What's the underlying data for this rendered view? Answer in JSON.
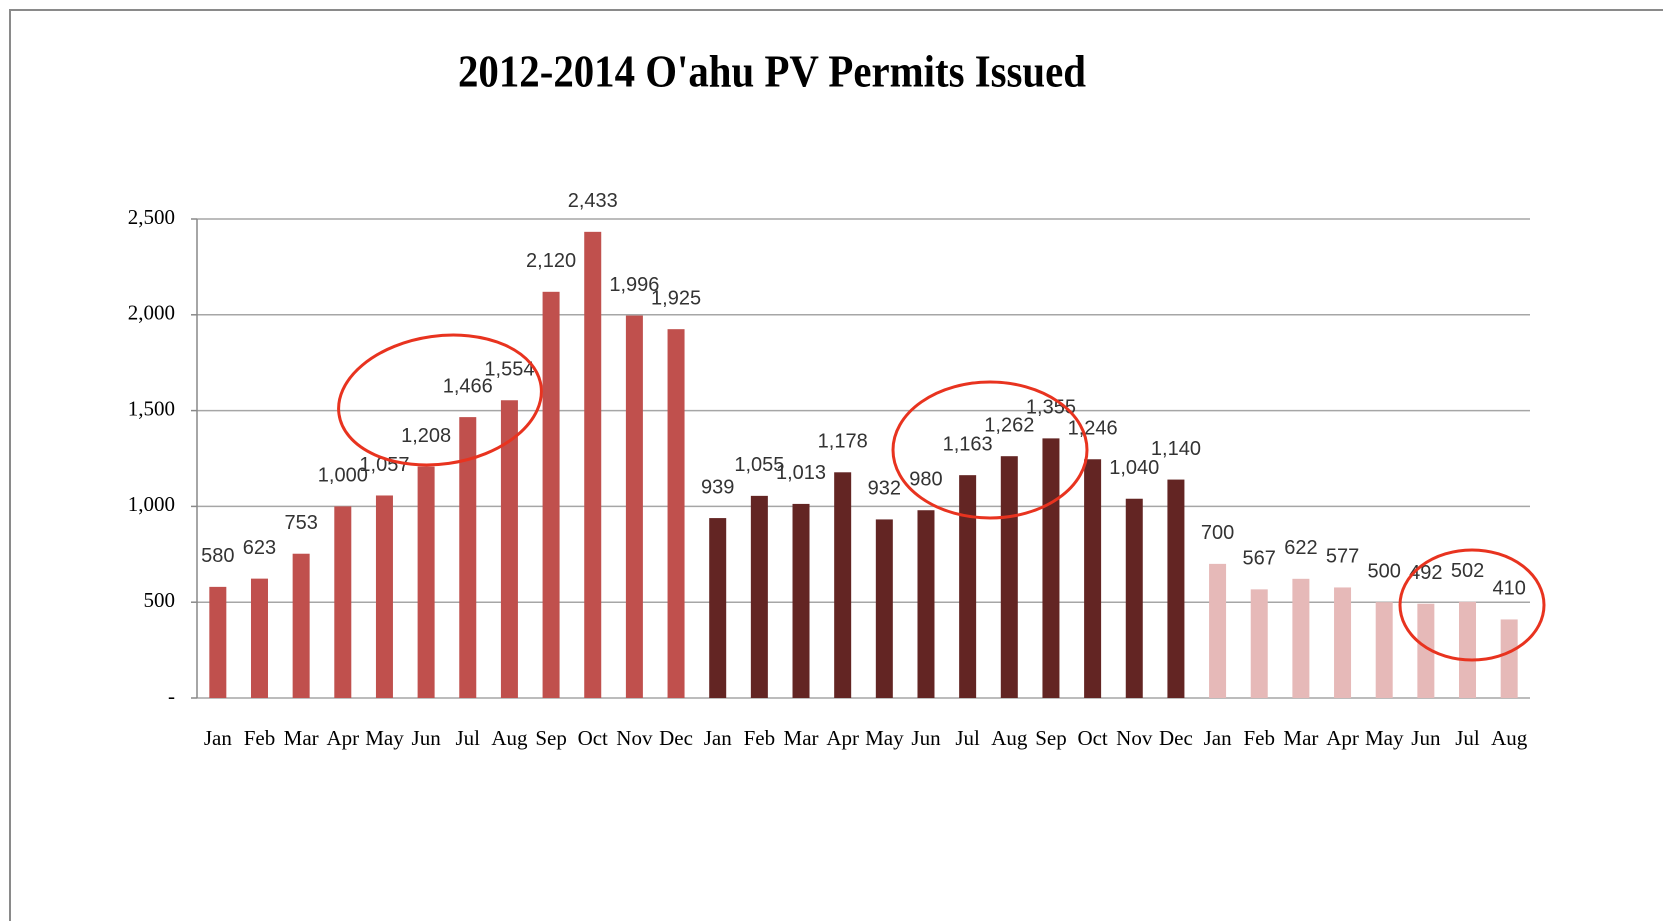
{
  "chart_data": {
    "type": "bar",
    "title": "2012-2014 O'ahu PV Permits Issued",
    "categories": [
      "Jan",
      "Feb",
      "Mar",
      "Apr",
      "May",
      "Jun",
      "Jul",
      "Aug",
      "Sep",
      "Oct",
      "Nov",
      "Dec",
      "Jan",
      "Feb",
      "Mar",
      "Apr",
      "May",
      "Jun",
      "Jul",
      "Aug",
      "Sep",
      "Oct",
      "Nov",
      "Dec",
      "Jan",
      "Feb",
      "Mar",
      "Apr",
      "May",
      "Jun",
      "Jul",
      "Aug"
    ],
    "values": [
      580,
      623,
      753,
      1000,
      1057,
      1208,
      1466,
      1554,
      2120,
      2433,
      1996,
      1925,
      939,
      1055,
      1013,
      1178,
      932,
      980,
      1163,
      1262,
      1355,
      1246,
      1040,
      1140,
      700,
      567,
      622,
      577,
      500,
      492,
      502,
      410
    ],
    "value_labels": [
      "580",
      "623",
      "753",
      "1,000",
      "1,057",
      "1,208",
      "1,466",
      "1,554",
      "2,120",
      "2,433",
      "1,996",
      "1,925",
      "939",
      "1,055",
      "1,013",
      "1,178",
      "932",
      "980",
      "1,163",
      "1,262",
      "1,355",
      "1,246",
      "1,040",
      "1,140",
      "700",
      "567",
      "622",
      "577",
      "500",
      "492",
      "502",
      "410"
    ],
    "colors": [
      "#c0504d",
      "#c0504d",
      "#c0504d",
      "#c0504d",
      "#c0504d",
      "#c0504d",
      "#c0504d",
      "#c0504d",
      "#c0504d",
      "#c0504d",
      "#c0504d",
      "#c0504d",
      "#632523",
      "#632523",
      "#632523",
      "#632523",
      "#632523",
      "#632523",
      "#632523",
      "#632523",
      "#632523",
      "#632523",
      "#632523",
      "#632523",
      "#e6b9b8",
      "#e6b9b8",
      "#e6b9b8",
      "#e6b9b8",
      "#e6b9b8",
      "#e6b9b8",
      "#e6b9b8",
      "#e6b9b8"
    ],
    "ylim": [
      0,
      2500
    ],
    "yticks": [
      {
        "value": 0,
        "label": "-"
      },
      500,
      {
        "value": 1000,
        "label": "1,000"
      },
      {
        "value": 1500,
        "label": "1,500"
      },
      {
        "value": 2000,
        "label": "2,000"
      },
      {
        "value": 2500,
        "label": "2,500"
      }
    ],
    "grid": true
  }
}
